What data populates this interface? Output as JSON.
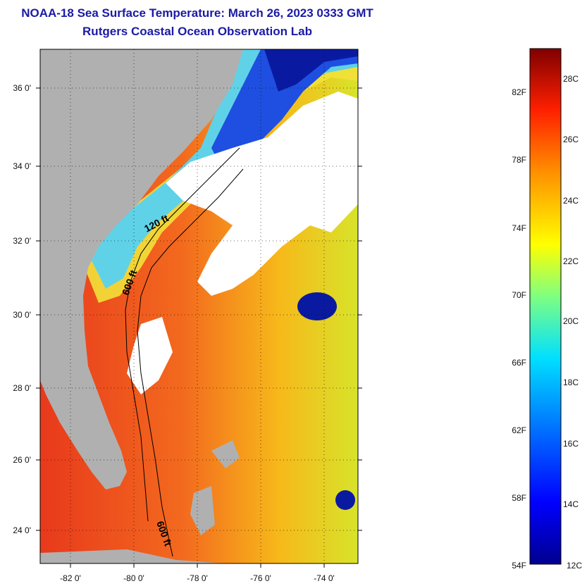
{
  "title": "NOAA-18 Sea Surface Temperature:  March 26, 2023 0333 GMT",
  "subtitle": "Rutgers Coastal Ocean Observation Lab",
  "map": {
    "lat_ticks": [
      "36 0'",
      "34 0'",
      "32 0'",
      "30 0'",
      "28 0'",
      "26 0'",
      "24 0'"
    ],
    "lon_ticks": [
      "-82 0'",
      "-80 0'",
      "-78 0'",
      "-76 0'",
      "-74 0'"
    ],
    "contour_labels": [
      "120 ft",
      "600 ft",
      "600 ft"
    ],
    "colors": {
      "land": "#b0b0b0",
      "cloud": "#ffffff",
      "warm": "#e8391c",
      "cool": "#5fd2e8"
    }
  },
  "colorbar": {
    "celsius_labels": [
      "28C",
      "26C",
      "24C",
      "22C",
      "20C",
      "18C",
      "16C",
      "14C",
      "12C"
    ],
    "fahrenheit_labels": [
      "82F",
      "78F",
      "74F",
      "70F",
      "66F",
      "62F",
      "58F",
      "54F"
    ]
  }
}
